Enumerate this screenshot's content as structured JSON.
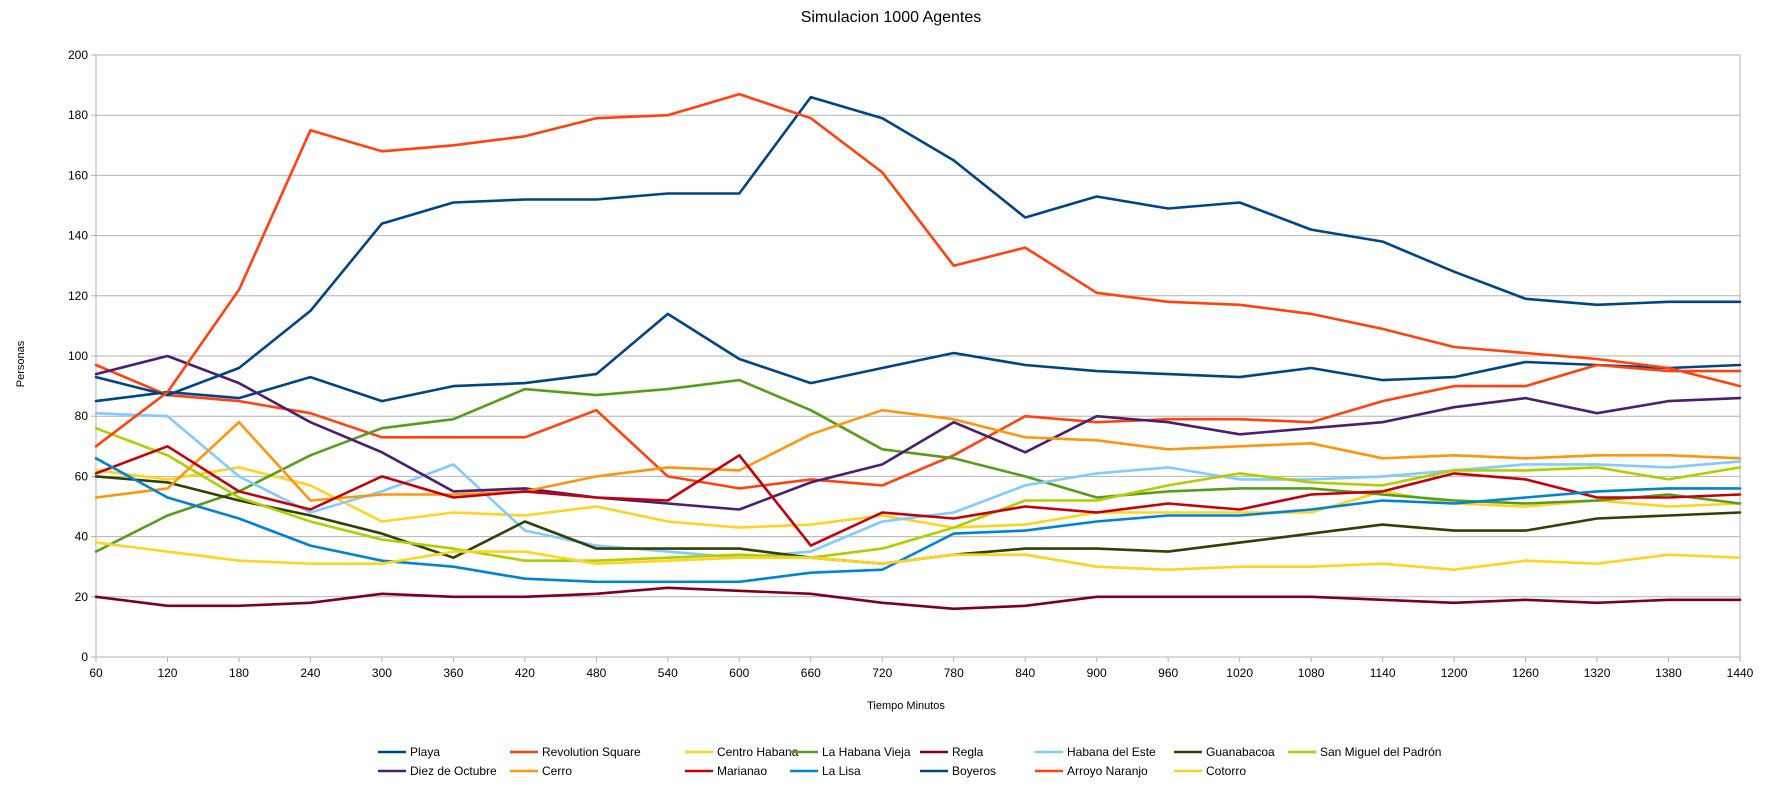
{
  "chart_data": {
    "type": "line",
    "title": "Simulacion 1000 Agentes",
    "xlabel": "Tiempo Minutos",
    "ylabel": "Personas",
    "ylim": [
      0,
      200
    ],
    "yticks": [
      0,
      20,
      40,
      60,
      80,
      100,
      120,
      140,
      160,
      180,
      200
    ],
    "x": [
      60,
      120,
      180,
      240,
      300,
      360,
      420,
      480,
      540,
      600,
      660,
      720,
      780,
      840,
      900,
      960,
      1020,
      1080,
      1140,
      1200,
      1260,
      1320,
      1380,
      1440
    ],
    "grid": true,
    "legend_position": "bottom",
    "series": [
      {
        "name": "Playa",
        "color": "#004586",
        "values": [
          85,
          88,
          86,
          93,
          85,
          90,
          91,
          94,
          114,
          99,
          91,
          96,
          101,
          97,
          95,
          94,
          93,
          96,
          92,
          93,
          98,
          97,
          96,
          97
        ]
      },
      {
        "name": "Revolution Square",
        "color": "#ff420e",
        "values": [
          97,
          87,
          85,
          81,
          73,
          73,
          73,
          82,
          60,
          56,
          59,
          57,
          67,
          80,
          78,
          79,
          79,
          78,
          85,
          90,
          90,
          97,
          95,
          95
        ]
      },
      {
        "name": "Centro Habana",
        "color": "#ffd320",
        "values": [
          62,
          59,
          63,
          57,
          45,
          48,
          47,
          50,
          45,
          43,
          44,
          47,
          43,
          44,
          48,
          48,
          48,
          48,
          55,
          51,
          50,
          52,
          50,
          51
        ]
      },
      {
        "name": "La Habana Vieja",
        "color": "#579d1c",
        "values": [
          35,
          47,
          55,
          67,
          76,
          79,
          89,
          87,
          89,
          92,
          82,
          69,
          66,
          60,
          53,
          55,
          56,
          56,
          54,
          52,
          51,
          52,
          54,
          51
        ]
      },
      {
        "name": "Regla",
        "color": "#7e0021",
        "values": [
          20,
          17,
          17,
          18,
          21,
          20,
          20,
          21,
          23,
          22,
          21,
          18,
          16,
          17,
          20,
          20,
          20,
          20,
          19,
          18,
          19,
          18,
          19,
          19
        ]
      },
      {
        "name": "Habana del Este",
        "color": "#83caff",
        "values": [
          81,
          80,
          60,
          48,
          55,
          64,
          42,
          37,
          35,
          33,
          35,
          45,
          48,
          57,
          61,
          63,
          59,
          59,
          60,
          62,
          64,
          64,
          63,
          65
        ]
      },
      {
        "name": "Guanabacoa",
        "color": "#314004",
        "values": [
          60,
          58,
          52,
          47,
          41,
          33,
          45,
          36,
          36,
          36,
          33,
          31,
          34,
          36,
          36,
          35,
          38,
          41,
          44,
          42,
          42,
          46,
          47,
          48
        ]
      },
      {
        "name": "San Miguel del Padrón",
        "color": "#aecf00",
        "values": [
          76,
          67,
          53,
          45,
          39,
          36,
          32,
          32,
          33,
          34,
          33,
          36,
          43,
          52,
          52,
          57,
          61,
          58,
          57,
          62,
          62,
          63,
          59,
          63
        ]
      },
      {
        "name": "Diez de Octubre",
        "color": "#4b1f6f",
        "values": [
          94,
          100,
          91,
          78,
          68,
          55,
          56,
          53,
          51,
          49,
          58,
          64,
          78,
          68,
          80,
          78,
          74,
          76,
          78,
          83,
          86,
          81,
          85,
          86
        ]
      },
      {
        "name": "Cerro",
        "color": "#ff950e",
        "values": [
          53,
          56,
          78,
          52,
          54,
          54,
          55,
          60,
          63,
          62,
          74,
          82,
          79,
          73,
          72,
          69,
          70,
          71,
          66,
          67,
          66,
          67,
          67,
          66
        ]
      },
      {
        "name": "Marianao",
        "color": "#c5000b",
        "values": [
          61,
          70,
          55,
          49,
          60,
          53,
          55,
          53,
          52,
          67,
          37,
          48,
          46,
          50,
          48,
          51,
          49,
          54,
          55,
          61,
          59,
          53,
          53,
          54
        ]
      },
      {
        "name": "La Lisa",
        "color": "#0084d1",
        "values": [
          66,
          53,
          46,
          37,
          32,
          30,
          26,
          25,
          25,
          25,
          28,
          29,
          41,
          42,
          45,
          47,
          47,
          49,
          52,
          51,
          53,
          55,
          56,
          56
        ]
      },
      {
        "name": "Boyeros",
        "color": "#004586",
        "values": [
          93,
          87,
          96,
          115,
          144,
          151,
          152,
          152,
          154,
          154,
          186,
          179,
          165,
          146,
          153,
          149,
          151,
          142,
          138,
          128,
          119,
          117,
          118,
          118
        ]
      },
      {
        "name": "Arroyo Naranjo",
        "color": "#ff420e",
        "values": [
          70,
          88,
          122,
          175,
          168,
          170,
          173,
          179,
          180,
          187,
          179,
          161,
          130,
          136,
          121,
          118,
          117,
          114,
          109,
          103,
          101,
          99,
          96,
          90
        ]
      },
      {
        "name": "Cotorro",
        "color": "#ffd320",
        "values": [
          38,
          35,
          32,
          31,
          31,
          35,
          35,
          31,
          32,
          33,
          33,
          31,
          34,
          34,
          30,
          29,
          30,
          30,
          31,
          29,
          32,
          31,
          34,
          33
        ]
      }
    ]
  }
}
